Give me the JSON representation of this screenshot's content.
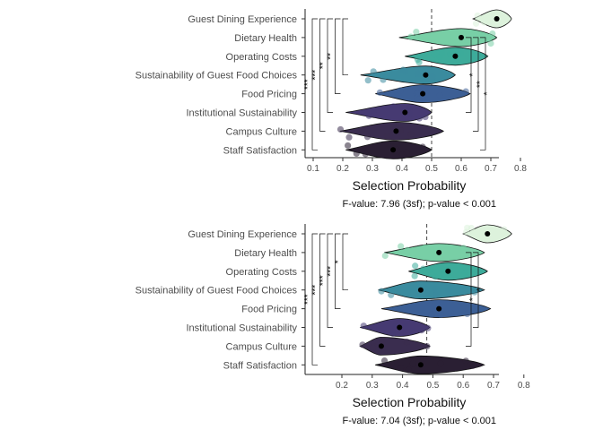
{
  "chart_data": [
    {
      "type": "violin",
      "xlabel": "Selection Probability",
      "ylabel": "",
      "xlim": [
        0.06,
        0.81
      ],
      "x_ticks": [
        "0.1",
        "0.2",
        "0.3",
        "0.4",
        "0.5",
        "0.6",
        "0.7",
        "0.8"
      ],
      "reference_line": 0.5,
      "annotation": "F-value: 7.96 (3sf); p-value < 0.001",
      "grid": false,
      "categories": [
        "Guest Dining Experience",
        "Dietary Health",
        "Operating Costs",
        "Sustainability of Guest Food Choices",
        "Food Pricing",
        "Institutional Sustainability",
        "Campus Culture",
        "Staff Satisfaction"
      ],
      "series": [
        {
          "category": "Guest Dining Experience",
          "color": "#ddf2dc",
          "range": [
            0.64,
            0.77
          ],
          "mean": 0.72
        },
        {
          "category": "Dietary Health",
          "color": "#78cfa6",
          "range": [
            0.39,
            0.72
          ],
          "mean": 0.6
        },
        {
          "category": "Operating Costs",
          "color": "#3dab9a",
          "range": [
            0.41,
            0.69
          ],
          "mean": 0.58
        },
        {
          "category": "Sustainability of Guest Food Choices",
          "color": "#3a8b9e",
          "range": [
            0.26,
            0.58
          ],
          "mean": 0.48
        },
        {
          "category": "Food Pricing",
          "color": "#3c5f95",
          "range": [
            0.31,
            0.63
          ],
          "mean": 0.47
        },
        {
          "category": "Institutional Sustainability",
          "color": "#463a72",
          "range": [
            0.21,
            0.5
          ],
          "mean": 0.41
        },
        {
          "category": "Campus Culture",
          "color": "#3a2d4f",
          "range": [
            0.19,
            0.54
          ],
          "mean": 0.38
        },
        {
          "category": "Staff Satisfaction",
          "color": "#2a1f33",
          "range": [
            0.21,
            0.5
          ],
          "mean": 0.37
        }
      ],
      "significance": [
        {
          "from": "Guest Dining Experience",
          "to": "Staff Satisfaction",
          "label": "***"
        },
        {
          "from": "Guest Dining Experience",
          "to": "Campus Culture",
          "label": "***"
        },
        {
          "from": "Guest Dining Experience",
          "to": "Institutional Sustainability",
          "label": "**"
        },
        {
          "from": "Guest Dining Experience",
          "to": "Food Pricing",
          "label": "**"
        },
        {
          "from": "Guest Dining Experience",
          "to": "Sustainability of Guest Food Choices",
          "label": ""
        },
        {
          "from": "Dietary Health",
          "to": "Institutional Sustainability",
          "label": "*"
        },
        {
          "from": "Dietary Health",
          "to": "Campus Culture",
          "label": "**"
        },
        {
          "from": "Dietary Health",
          "to": "Staff Satisfaction",
          "label": "*"
        }
      ]
    },
    {
      "type": "violin",
      "xlabel": "Selection Probability",
      "ylabel": "",
      "xlim": [
        0.13,
        0.81
      ],
      "x_ticks": [
        "0.2",
        "0.3",
        "0.4",
        "0.5",
        "0.6",
        "0.7",
        "0.8"
      ],
      "reference_line": 0.48,
      "annotation": "F-value: 7.04 (3sf); p-value < 0.001",
      "grid": false,
      "categories": [
        "Guest Dining Experience",
        "Dietary Health",
        "Operating Costs",
        "Sustainability of Guest Food Choices",
        "Food Pricing",
        "Institutional Sustainability",
        "Campus Culture",
        "Staff Satisfaction"
      ],
      "series": [
        {
          "category": "Guest Dining Experience",
          "color": "#ddf2dc",
          "range": [
            0.6,
            0.76
          ],
          "mean": 0.68
        },
        {
          "category": "Dietary Health",
          "color": "#78cfa6",
          "range": [
            0.34,
            0.67
          ],
          "mean": 0.52
        },
        {
          "category": "Operating Costs",
          "color": "#3dab9a",
          "range": [
            0.42,
            0.68
          ],
          "mean": 0.55
        },
        {
          "category": "Sustainability of Guest Food Choices",
          "color": "#3a8b9e",
          "range": [
            0.32,
            0.67
          ],
          "mean": 0.46
        },
        {
          "category": "Food Pricing",
          "color": "#3c5f95",
          "range": [
            0.33,
            0.69
          ],
          "mean": 0.52
        },
        {
          "category": "Institutional Sustainability",
          "color": "#463a72",
          "range": [
            0.26,
            0.49
          ],
          "mean": 0.39
        },
        {
          "category": "Campus Culture",
          "color": "#3a2d4f",
          "range": [
            0.26,
            0.49
          ],
          "mean": 0.33
        },
        {
          "category": "Staff Satisfaction",
          "color": "#2a1f33",
          "range": [
            0.31,
            0.67
          ],
          "mean": 0.46
        }
      ],
      "significance": [
        {
          "from": "Guest Dining Experience",
          "to": "Staff Satisfaction",
          "label": "***"
        },
        {
          "from": "Guest Dining Experience",
          "to": "Campus Culture",
          "label": "***"
        },
        {
          "from": "Guest Dining Experience",
          "to": "Institutional Sustainability",
          "label": "***"
        },
        {
          "from": "Guest Dining Experience",
          "to": "Food Pricing",
          "label": "***"
        },
        {
          "from": "Guest Dining Experience",
          "to": "Sustainability of Guest Food Choices",
          "label": "*"
        },
        {
          "from": "Dietary Health",
          "to": "Campus Culture",
          "label": "*"
        },
        {
          "from": "Dietary Health",
          "to": "Institutional Sustainability",
          "label": "*"
        }
      ]
    }
  ]
}
